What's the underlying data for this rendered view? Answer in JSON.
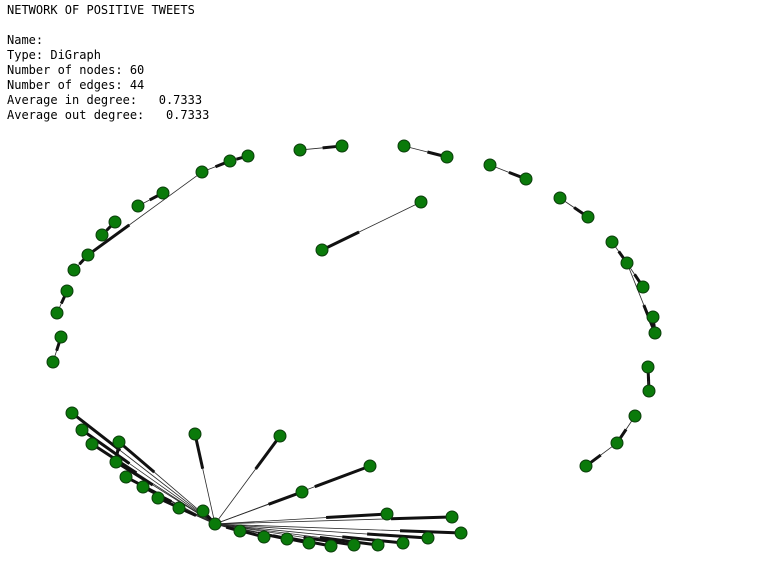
{
  "title": "NETWORK OF POSITIVE TWEETS",
  "info": {
    "name": "Name:",
    "type": "Type: DiGraph",
    "nodes": "Number of nodes: 60",
    "edges": "Number of edges: 44",
    "in_degree": "Average in degree:   0.7333",
    "out_degree": "Average out degree:   0.7333"
  },
  "colors": {
    "node_fill": "#0a7a0a",
    "node_stroke": "#0b3d0b",
    "edge": "#2a2a2a",
    "arrow": "#111111"
  }
}
